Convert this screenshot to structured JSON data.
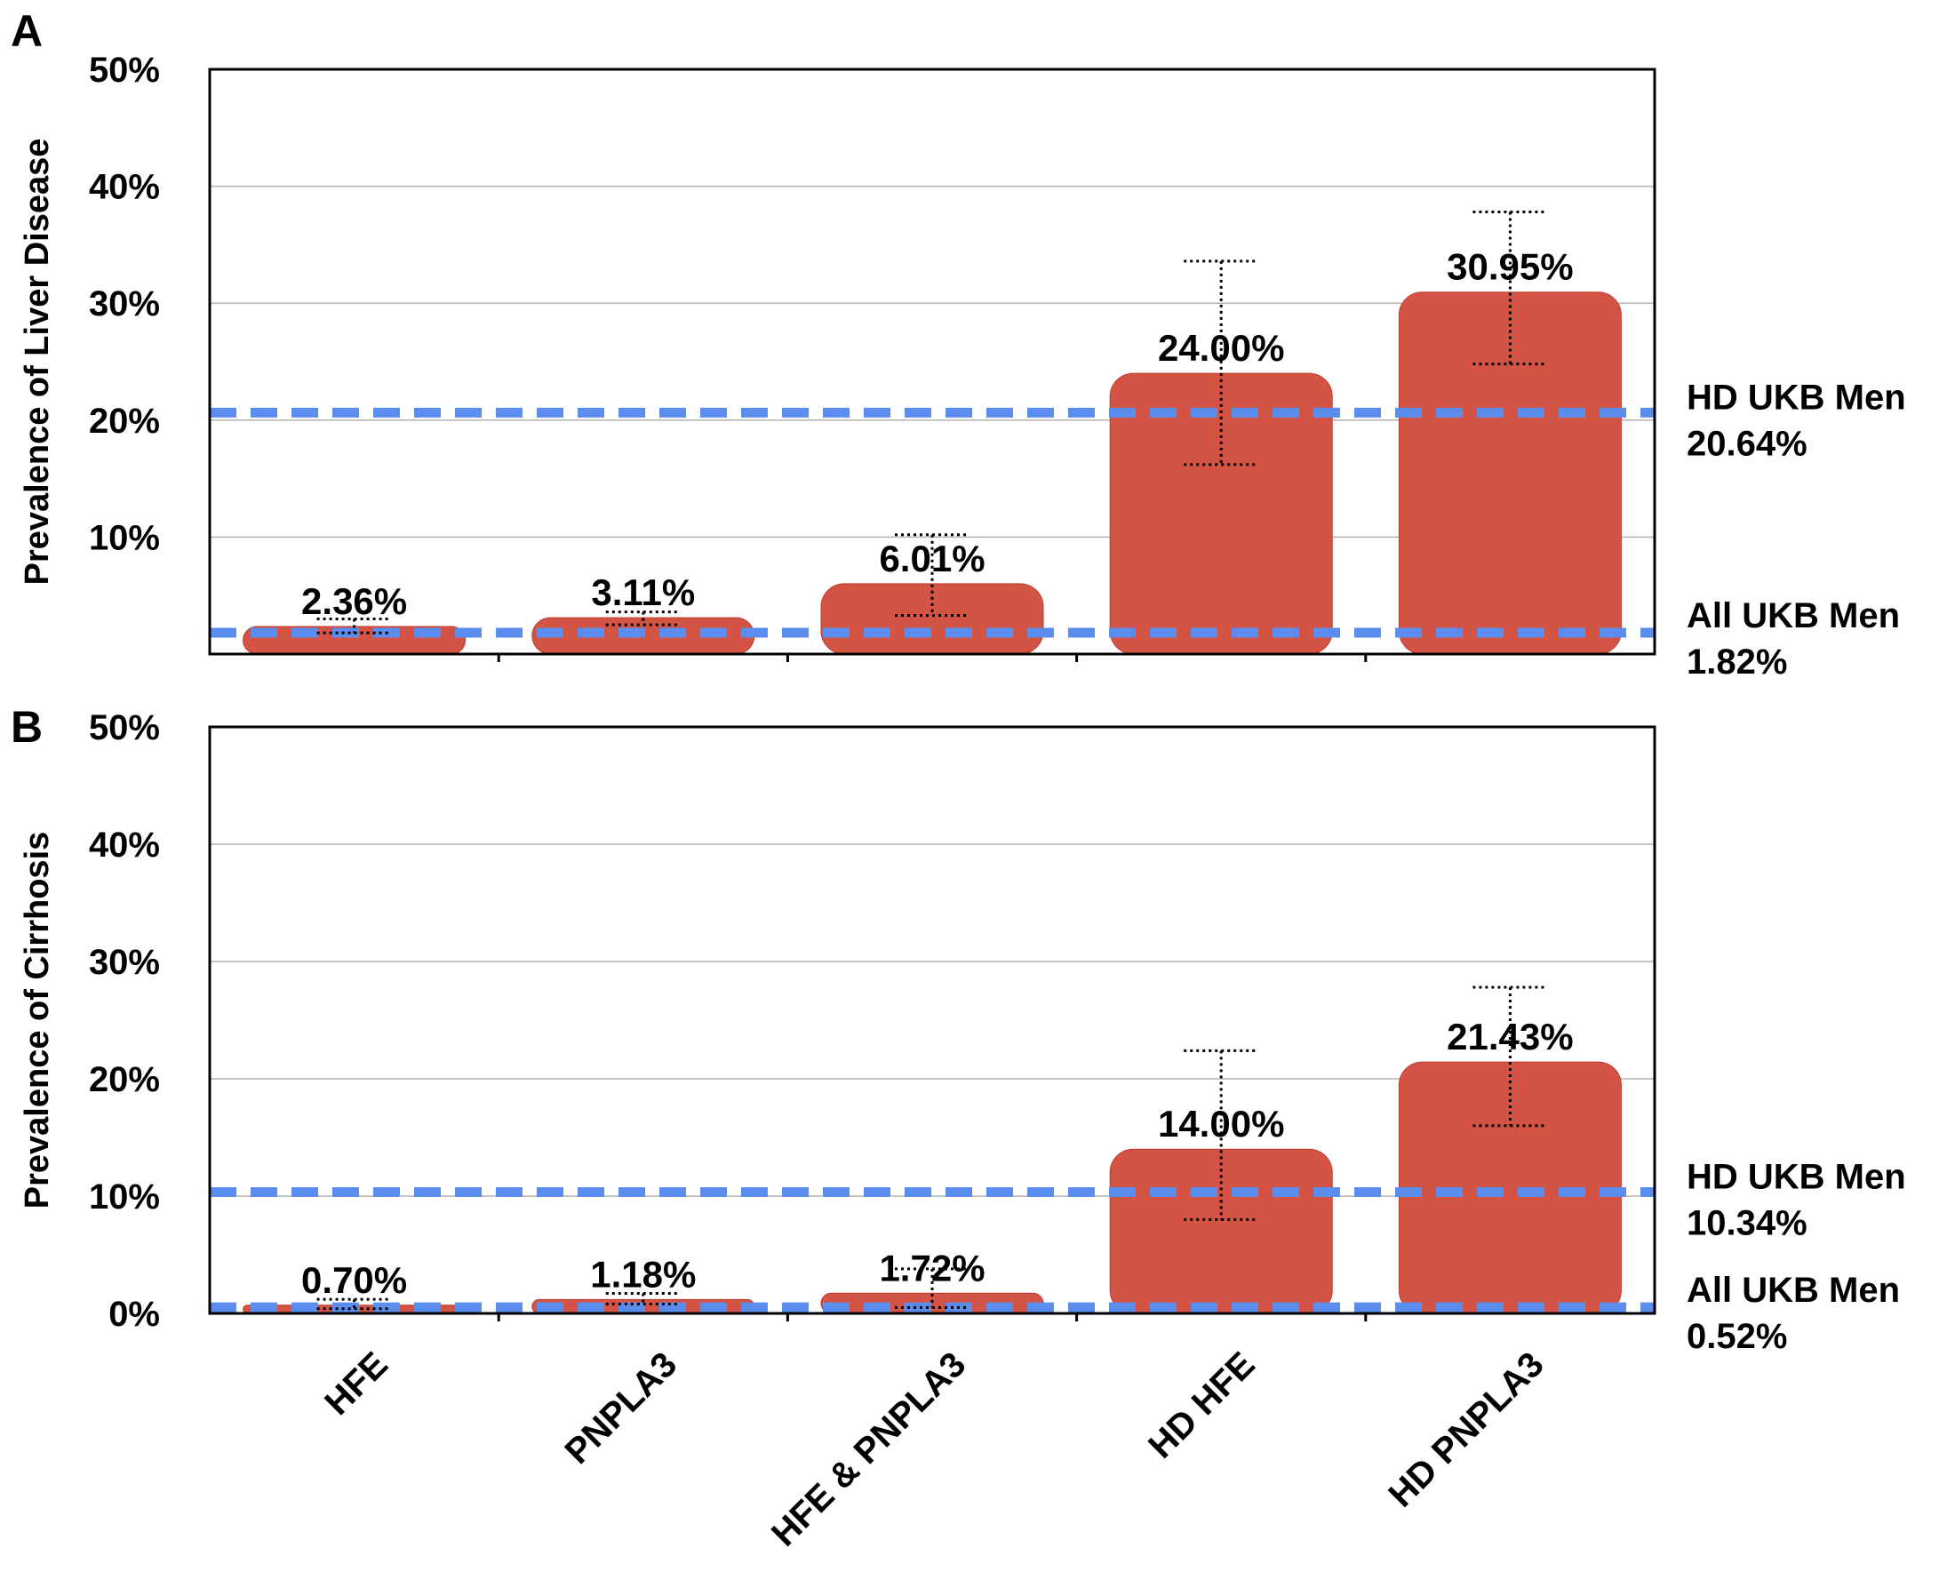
{
  "colors": {
    "bar": "#d35444",
    "bar_edge": "#c0392b",
    "reference_line": "#5b8def",
    "grid": "#b3b3b3",
    "axis": "#000000"
  },
  "chart_data": [
    {
      "panel": "A",
      "type": "bar",
      "ylabel": "Prevalence of Liver Disease",
      "ylim": [
        0,
        50
      ],
      "yticks": [
        "10%",
        "20%",
        "30%",
        "40%",
        "50%"
      ],
      "grid": true,
      "categories": [
        "HFE",
        "PNPLA3",
        "HFE & PNPLA3",
        "HD HFE",
        "HD PNPLA3"
      ],
      "values": [
        2.36,
        3.11,
        6.01,
        24.0,
        30.95
      ],
      "value_labels": [
        "2.36%",
        "3.11%",
        "6.01%",
        "24.00%",
        "30.95%"
      ],
      "error_low": [
        1.8,
        2.5,
        3.3,
        16.2,
        24.8
      ],
      "error_high": [
        3.0,
        3.6,
        10.2,
        33.6,
        37.8
      ],
      "reference_lines": [
        {
          "value": 20.64,
          "label_line1": "HD UKB Men",
          "label_line2": "20.64%"
        },
        {
          "value": 1.82,
          "label_line1": "All UKB Men",
          "label_line2": "1.82%"
        }
      ]
    },
    {
      "panel": "B",
      "type": "bar",
      "ylabel": "Prevalence of Cirrhosis",
      "ylim": [
        0,
        50
      ],
      "yticks": [
        "0%",
        "10%",
        "20%",
        "30%",
        "40%",
        "50%"
      ],
      "grid": true,
      "categories": [
        "HFE",
        "PNPLA3",
        "HFE & PNPLA3",
        "HD HFE",
        "HD PNPLA3"
      ],
      "values": [
        0.7,
        1.18,
        1.72,
        14.0,
        21.43
      ],
      "value_labels": [
        "0.70%",
        "1.18%",
        "1.72%",
        "14.00%",
        "21.43%"
      ],
      "error_low": [
        0.4,
        0.8,
        0.5,
        8.0,
        16.0
      ],
      "error_high": [
        1.2,
        1.7,
        3.8,
        22.4,
        27.8
      ],
      "reference_lines": [
        {
          "value": 10.34,
          "label_line1": "HD UKB Men",
          "label_line2": "10.34%"
        },
        {
          "value": 0.52,
          "label_line1": "All UKB Men",
          "label_line2": "0.52%"
        }
      ]
    }
  ]
}
